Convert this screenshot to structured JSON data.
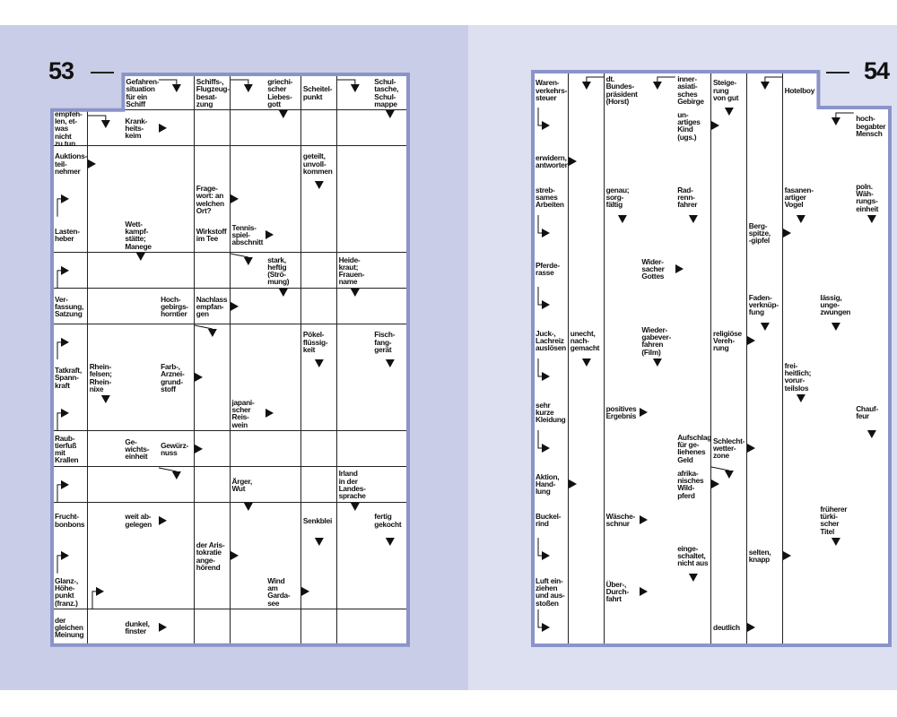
{
  "colors": {
    "page_left": "#c9cde7",
    "page_right": "#dde0f1",
    "frame": "#8b94c9",
    "grid_line": "#222222"
  },
  "pages": [
    {
      "page_number": "53",
      "rows": 16,
      "cols": 10,
      "missing": [
        [
          0,
          0
        ],
        [
          0,
          1
        ]
      ],
      "clues": [
        {
          "r": 0,
          "c": 2,
          "text": "Gefahren-\nsituation\nfür ein\nSchiff"
        },
        {
          "r": 0,
          "c": 4,
          "text": "Schiffs-,\nFlugzeug-\nbesat-\nzung"
        },
        {
          "r": 0,
          "c": 6,
          "text": "griechi-\nscher\nLiebes-\ngott"
        },
        {
          "r": 0,
          "c": 7,
          "text": "Scheitel-\npunkt"
        },
        {
          "r": 0,
          "c": 9,
          "text": "Schul-\ntasche,\nSchul-\nmappe"
        },
        {
          "r": 1,
          "c": 0,
          "text": "empfeh-\nlen, et-\nwas nicht\nzu tun"
        },
        {
          "r": 1,
          "c": 2,
          "text": "Krank-\nheits-\nkeim"
        },
        {
          "r": 2,
          "c": 0,
          "text": "Auktions-\nteil-\nnehmer"
        },
        {
          "r": 2,
          "c": 7,
          "text": "geteilt,\nunvoll-\nkommen"
        },
        {
          "r": 3,
          "c": 4,
          "text": "Frage-\nwort: an\nwelchen\nOrt?"
        },
        {
          "r": 4,
          "c": 0,
          "text": "Lasten-\nheber"
        },
        {
          "r": 4,
          "c": 2,
          "text": "Wett-\nkampf-\nstätte;\nManege"
        },
        {
          "r": 4,
          "c": 4,
          "text": "Wirkstoff\nim Tee"
        },
        {
          "r": 4,
          "c": 5,
          "text": "Tennis-\nspiel-\nabschnitt"
        },
        {
          "r": 5,
          "c": 6,
          "text": "stark,\nheftig\n(Strö-\nmung)"
        },
        {
          "r": 5,
          "c": 8,
          "text": "Heide-\nkraut;\nFrauen-\nname"
        },
        {
          "r": 6,
          "c": 0,
          "text": "Ver-\nfassung,\nSatzung"
        },
        {
          "r": 6,
          "c": 3,
          "text": "Hoch-\ngebirgs-\nhorntier"
        },
        {
          "r": 6,
          "c": 4,
          "text": "Nachlass\nempfan-\ngen"
        },
        {
          "r": 7,
          "c": 7,
          "text": "Pökel-\nflüssig-\nkeit"
        },
        {
          "r": 7,
          "c": 9,
          "text": "Fisch-\nfang-\ngerät"
        },
        {
          "r": 8,
          "c": 0,
          "text": "Tatkraft,\nSpann-\nkraft"
        },
        {
          "r": 8,
          "c": 1,
          "text": "Rhein-\nfelsen;\nRhein-\nnixe"
        },
        {
          "r": 8,
          "c": 3,
          "text": "Farb-,\nArznei-\ngrund-\nstoff"
        },
        {
          "r": 9,
          "c": 5,
          "text": "japani-\nscher\nReis-\nwein"
        },
        {
          "r": 10,
          "c": 0,
          "text": "Raub-\ntierfuß\nmit\nKrallen"
        },
        {
          "r": 10,
          "c": 2,
          "text": "Ge-\nwichts-\neinheit"
        },
        {
          "r": 10,
          "c": 3,
          "text": "Gewürz-\nnuss"
        },
        {
          "r": 11,
          "c": 5,
          "text": "Ärger,\nWut"
        },
        {
          "r": 11,
          "c": 8,
          "text": "Irland\nin der\nLandes-\nsprache"
        },
        {
          "r": 12,
          "c": 0,
          "text": "Frucht-\nbonbons"
        },
        {
          "r": 12,
          "c": 2,
          "text": "weit ab-\ngelegen"
        },
        {
          "r": 12,
          "c": 7,
          "text": "Senkblei"
        },
        {
          "r": 12,
          "c": 9,
          "text": "fertig\ngekocht"
        },
        {
          "r": 13,
          "c": 4,
          "text": "der Aris-\ntokratie\nange-\nhörend"
        },
        {
          "r": 14,
          "c": 0,
          "text": "Glanz-,\nHöhe-\npunkt\n(franz.)"
        },
        {
          "r": 14,
          "c": 6,
          "text": "Wind\nam\nGarda-\nsee"
        },
        {
          "r": 15,
          "c": 0,
          "text": "der\ngleichen\nMeinung"
        },
        {
          "r": 15,
          "c": 2,
          "text": "dunkel,\nfinster"
        }
      ],
      "arrows": [
        {
          "r": 0,
          "c": 3,
          "type": "hook-down-from-left"
        },
        {
          "r": 0,
          "c": 5,
          "type": "hook-down-from-left"
        },
        {
          "r": 0,
          "c": 8,
          "type": "hook-down-from-left"
        },
        {
          "r": 1,
          "c": 1,
          "type": "hook-down-from-left"
        },
        {
          "r": 1,
          "c": 3,
          "type": "right"
        },
        {
          "r": 1,
          "c": 6,
          "type": "down"
        },
        {
          "r": 1,
          "c": 9,
          "type": "down"
        },
        {
          "r": 2,
          "c": 1,
          "type": "right"
        },
        {
          "r": 3,
          "c": 0,
          "type": "hook-right-from-bottom"
        },
        {
          "r": 3,
          "c": 5,
          "type": "right"
        },
        {
          "r": 3,
          "c": 7,
          "type": "down"
        },
        {
          "r": 4,
          "c": 6,
          "type": "right"
        },
        {
          "r": 5,
          "c": 0,
          "type": "hook-right-from-bottom"
        },
        {
          "r": 5,
          "c": 2,
          "type": "down"
        },
        {
          "r": 5,
          "c": 5,
          "type": "slant-down"
        },
        {
          "r": 6,
          "c": 5,
          "type": "right"
        },
        {
          "r": 6,
          "c": 6,
          "type": "down"
        },
        {
          "r": 6,
          "c": 8,
          "type": "down"
        },
        {
          "r": 7,
          "c": 0,
          "type": "hook-right-from-bottom"
        },
        {
          "r": 7,
          "c": 4,
          "type": "slant-down"
        },
        {
          "r": 8,
          "c": 4,
          "type": "right"
        },
        {
          "r": 8,
          "c": 7,
          "type": "down"
        },
        {
          "r": 8,
          "c": 9,
          "type": "down"
        },
        {
          "r": 9,
          "c": 0,
          "type": "hook-right-from-bottom"
        },
        {
          "r": 9,
          "c": 1,
          "type": "down"
        },
        {
          "r": 9,
          "c": 6,
          "type": "right"
        },
        {
          "r": 10,
          "c": 4,
          "type": "right"
        },
        {
          "r": 11,
          "c": 0,
          "type": "hook-right-from-bottom"
        },
        {
          "r": 11,
          "c": 3,
          "type": "slant-down"
        },
        {
          "r": 12,
          "c": 3,
          "type": "right"
        },
        {
          "r": 12,
          "c": 5,
          "type": "down"
        },
        {
          "r": 12,
          "c": 8,
          "type": "down"
        },
        {
          "r": 13,
          "c": 0,
          "type": "hook-right-from-bottom"
        },
        {
          "r": 13,
          "c": 5,
          "type": "right"
        },
        {
          "r": 13,
          "c": 7,
          "type": "down"
        },
        {
          "r": 13,
          "c": 9,
          "type": "down"
        },
        {
          "r": 14,
          "c": 1,
          "type": "hook-right-from-bottom"
        },
        {
          "r": 14,
          "c": 7,
          "type": "right"
        },
        {
          "r": 15,
          "c": 3,
          "type": "right"
        }
      ]
    },
    {
      "page_number": "54",
      "rows": 16,
      "cols": 10,
      "missing": [
        [
          0,
          8
        ],
        [
          0,
          9
        ]
      ],
      "clues": [
        {
          "r": 0,
          "c": 0,
          "text": "Waren-\nverkehrs-\nsteuer"
        },
        {
          "r": 0,
          "c": 2,
          "text": "dt.\nBundes-\npräsident\n(Horst)"
        },
        {
          "r": 0,
          "c": 4,
          "text": "inner-\nasiati-\nsches\nGebirge"
        },
        {
          "r": 0,
          "c": 5,
          "text": "Steige-\nrung\nvon gut"
        },
        {
          "r": 0,
          "c": 7,
          "text": "Hotelboy"
        },
        {
          "r": 1,
          "c": 4,
          "text": "un-\nartiges\nKind\n(ugs.)"
        },
        {
          "r": 1,
          "c": 9,
          "text": "hoch-\nbegabter\nMensch"
        },
        {
          "r": 2,
          "c": 0,
          "text": "erwidern,\nantworten"
        },
        {
          "r": 3,
          "c": 0,
          "text": "streb-\nsames\nArbeiten"
        },
        {
          "r": 3,
          "c": 2,
          "text": "genau;\nsorg-\nfältig"
        },
        {
          "r": 3,
          "c": 4,
          "text": "Rad-\nrenn-\nfahrer"
        },
        {
          "r": 3,
          "c": 7,
          "text": "fasanen-\nartiger\nVogel"
        },
        {
          "r": 3,
          "c": 9,
          "text": "poln.\nWäh-\nrungs-\neinheit"
        },
        {
          "r": 4,
          "c": 6,
          "text": "Berg-\nspitze,\n-gipfel"
        },
        {
          "r": 5,
          "c": 0,
          "text": "Pferde-\nrasse"
        },
        {
          "r": 5,
          "c": 3,
          "text": "Wider-\nsacher\nGottes"
        },
        {
          "r": 6,
          "c": 6,
          "text": "Faden-\nverknüp-\nfung"
        },
        {
          "r": 6,
          "c": 8,
          "text": "lässig,\nunge-\nzwungen"
        },
        {
          "r": 7,
          "c": 0,
          "text": "Juck-,\nLachreiz\nauslösen"
        },
        {
          "r": 7,
          "c": 1,
          "text": "unecht,\nnach-\ngemacht"
        },
        {
          "r": 7,
          "c": 3,
          "text": "Wieder-\ngabever-\nfahren\n(Film)"
        },
        {
          "r": 7,
          "c": 5,
          "text": "religiöse\nVereh-\nrung"
        },
        {
          "r": 8,
          "c": 7,
          "text": "frei-\nheitlich;\nvorur-\nteilslos"
        },
        {
          "r": 9,
          "c": 0,
          "text": "sehr\nkurze\nKleidung"
        },
        {
          "r": 9,
          "c": 2,
          "text": "positives\nErgebnis"
        },
        {
          "r": 9,
          "c": 9,
          "text": "Chauf-\nfeur"
        },
        {
          "r": 10,
          "c": 4,
          "text": "Aufschlag\nfür ge-\nliehenes\nGeld"
        },
        {
          "r": 10,
          "c": 5,
          "text": "Schlecht-\nwetter-\nzone"
        },
        {
          "r": 11,
          "c": 0,
          "text": "Aktion,\nHand-\nlung"
        },
        {
          "r": 11,
          "c": 4,
          "text": "afrika-\nnisches\nWild-\npferd"
        },
        {
          "r": 12,
          "c": 0,
          "text": "Buckel-\nrind"
        },
        {
          "r": 12,
          "c": 2,
          "text": "Wäsche-\nschnur"
        },
        {
          "r": 12,
          "c": 8,
          "text": "früherer\ntürki-\nscher\nTitel"
        },
        {
          "r": 13,
          "c": 4,
          "text": "einge-\nschaltet,\nnicht aus"
        },
        {
          "r": 13,
          "c": 6,
          "text": "selten,\nknapp"
        },
        {
          "r": 14,
          "c": 0,
          "text": "Luft ein-\nziehen\nund aus-\nstoßen"
        },
        {
          "r": 14,
          "c": 2,
          "text": "Über-,\nDurch-\nfahrt"
        },
        {
          "r": 15,
          "c": 5,
          "text": "deutlich"
        }
      ],
      "arrows": [
        {
          "r": 0,
          "c": 1,
          "type": "hook-down-from-right"
        },
        {
          "r": 0,
          "c": 3,
          "type": "hook-down-from-right"
        },
        {
          "r": 0,
          "c": 6,
          "type": "hook-down-from-right"
        },
        {
          "r": 1,
          "c": 0,
          "type": "hook-right-from-top"
        },
        {
          "r": 1,
          "c": 5,
          "type": "right"
        },
        {
          "r": 1,
          "c": 5,
          "type": "down"
        },
        {
          "r": 1,
          "c": 8,
          "type": "hook-down-from-right"
        },
        {
          "r": 2,
          "c": 1,
          "type": "right"
        },
        {
          "r": 4,
          "c": 0,
          "type": "hook-right-from-top"
        },
        {
          "r": 4,
          "c": 2,
          "type": "down"
        },
        {
          "r": 4,
          "c": 4,
          "type": "down"
        },
        {
          "r": 4,
          "c": 7,
          "type": "right"
        },
        {
          "r": 4,
          "c": 7,
          "type": "down"
        },
        {
          "r": 4,
          "c": 9,
          "type": "down"
        },
        {
          "r": 5,
          "c": 4,
          "type": "right"
        },
        {
          "r": 6,
          "c": 0,
          "type": "hook-right-from-top"
        },
        {
          "r": 7,
          "c": 6,
          "type": "right"
        },
        {
          "r": 7,
          "c": 6,
          "type": "down"
        },
        {
          "r": 7,
          "c": 8,
          "type": "down"
        },
        {
          "r": 8,
          "c": 0,
          "type": "hook-right-from-top"
        },
        {
          "r": 8,
          "c": 1,
          "type": "down"
        },
        {
          "r": 8,
          "c": 3,
          "type": "down"
        },
        {
          "r": 9,
          "c": 3,
          "type": "right"
        },
        {
          "r": 9,
          "c": 7,
          "type": "down"
        },
        {
          "r": 10,
          "c": 0,
          "type": "hook-right-from-top"
        },
        {
          "r": 10,
          "c": 6,
          "type": "right"
        },
        {
          "r": 10,
          "c": 9,
          "type": "down"
        },
        {
          "r": 11,
          "c": 1,
          "type": "right"
        },
        {
          "r": 11,
          "c": 5,
          "type": "right"
        },
        {
          "r": 11,
          "c": 5,
          "type": "slant-down"
        },
        {
          "r": 12,
          "c": 3,
          "type": "right"
        },
        {
          "r": 13,
          "c": 0,
          "type": "hook-right-from-top"
        },
        {
          "r": 13,
          "c": 7,
          "type": "right"
        },
        {
          "r": 13,
          "c": 8,
          "type": "down"
        },
        {
          "r": 14,
          "c": 3,
          "type": "right"
        },
        {
          "r": 14,
          "c": 4,
          "type": "down"
        },
        {
          "r": 15,
          "c": 0,
          "type": "hook-right-from-top"
        },
        {
          "r": 15,
          "c": 6,
          "type": "right"
        }
      ]
    }
  ]
}
